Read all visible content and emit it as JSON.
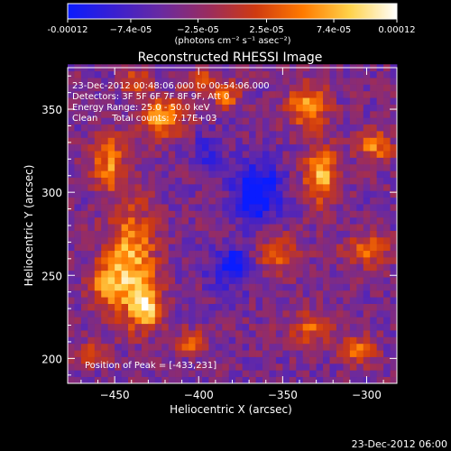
{
  "chart_data": {
    "type": "heatmap",
    "title": "Reconstructed RHESSI Image",
    "xlabel": "Heliocentric X (arcsec)",
    "ylabel": "Heliocentric Y (arcsec)",
    "xlim": [
      -478,
      -282
    ],
    "ylim": [
      185,
      375
    ],
    "x_ticks": [
      -450,
      -400,
      -350,
      -300
    ],
    "y_ticks": [
      200,
      250,
      300,
      350
    ],
    "info_lines": [
      "23-Dec-2012 00:48:06.000 to 00:54:06.000",
      "Detectors: 3F 5F 6F 7F 8F 9F, Att 0",
      "Energy Range: 25.0 - 50.0 keV",
      "Clean     Total counts: 7.17E+03"
    ],
    "peak_label": "Position of Peak = [-433,231]",
    "peak": [
      -433,
      231
    ],
    "colorbar": {
      "min": -0.00012,
      "max": 0.00012,
      "tick_values": [
        -0.00012,
        -7.4e-05,
        -2.5e-05,
        2.5e-05,
        7.4e-05,
        0.00012
      ],
      "tick_labels": [
        "-0.00012",
        "−7.4e-05",
        "−2.5e-05",
        "2.5e-05",
        "7.4e-05",
        "0.00012"
      ],
      "unit_label": "(photons cm⁻² s⁻¹ asec⁻²)",
      "colors": [
        "#0a1cff",
        "#3a1fd0",
        "#6a2aa0",
        "#9a2c5e",
        "#cf3a10",
        "#ff7a00",
        "#ffd24a",
        "#ffffff"
      ]
    },
    "grid": false,
    "blobs": [
      {
        "x": -440,
        "y": 260,
        "sx": 10,
        "sy": 22,
        "amp": 0.000115
      },
      {
        "x": -432,
        "y": 231,
        "sx": 7,
        "sy": 9,
        "amp": 0.00012
      },
      {
        "x": -455,
        "y": 245,
        "sx": 8,
        "sy": 10,
        "amp": 8e-05
      },
      {
        "x": -453,
        "y": 318,
        "sx": 7,
        "sy": 12,
        "amp": 9e-05
      },
      {
        "x": -421,
        "y": 345,
        "sx": 9,
        "sy": 8,
        "amp": 0.00011
      },
      {
        "x": -437,
        "y": 366,
        "sx": 6,
        "sy": 5,
        "amp": 8e-05
      },
      {
        "x": -397,
        "y": 367,
        "sx": 8,
        "sy": 5,
        "amp": 7e-05
      },
      {
        "x": -405,
        "y": 210,
        "sx": 6,
        "sy": 5,
        "amp": 7.5e-05
      },
      {
        "x": -383,
        "y": 358,
        "sx": 6,
        "sy": 5,
        "amp": 8e-05
      },
      {
        "x": -335,
        "y": 352,
        "sx": 8,
        "sy": 9,
        "amp": 0.00011
      },
      {
        "x": -327,
        "y": 310,
        "sx": 7,
        "sy": 12,
        "amp": 0.000115
      },
      {
        "x": -353,
        "y": 264,
        "sx": 9,
        "sy": 8,
        "amp": 7e-05
      },
      {
        "x": -295,
        "y": 328,
        "sx": 7,
        "sy": 7,
        "amp": 9e-05
      },
      {
        "x": -300,
        "y": 265,
        "sx": 9,
        "sy": 6,
        "amp": 9e-05
      },
      {
        "x": -305,
        "y": 205,
        "sx": 7,
        "sy": 6,
        "amp": 8.5e-05
      },
      {
        "x": -332,
        "y": 218,
        "sx": 10,
        "sy": 7,
        "amp": 7e-05
      },
      {
        "x": -464,
        "y": 203,
        "sx": 6,
        "sy": 5,
        "amp": 6e-05
      },
      {
        "x": -365,
        "y": 300,
        "sx": 10,
        "sy": 12,
        "amp": -0.0001
      },
      {
        "x": -380,
        "y": 255,
        "sx": 9,
        "sy": 9,
        "amp": -8e-05
      },
      {
        "x": -395,
        "y": 325,
        "sx": 7,
        "sy": 7,
        "amp": -5e-05
      }
    ]
  },
  "footer": {
    "timestamp": "23-Dec-2012 06:00"
  }
}
